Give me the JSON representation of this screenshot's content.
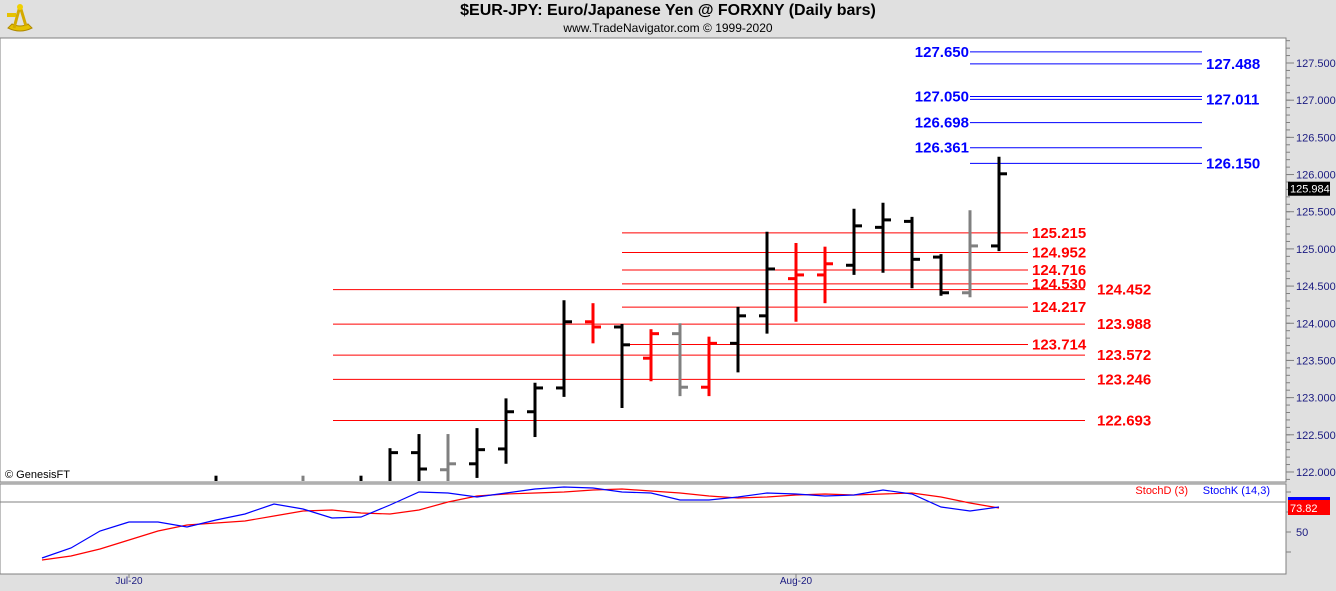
{
  "header": {
    "title": "$EUR-JPY:  Euro/Japanese Yen @ FORXNY  (Daily bars)",
    "subtitle": "www.TradeNavigator.com © 1999-2020",
    "logo_icon": "sextant-icon"
  },
  "copyright": "© GenesisFT",
  "colors": {
    "up": "#000000",
    "down": "#ff0000",
    "neutral": "#808080",
    "level_red": "#ff0000",
    "level_blue": "#0000ff",
    "stoch_k": "#0000ff",
    "stoch_d": "#ff0000"
  },
  "chart_data": [
    {
      "type": "ohlc",
      "title": "$EUR-JPY:  Euro/Japanese Yen @ FORXNY  (Daily bars)",
      "ylim": [
        121.7,
        127.85
      ],
      "yticks": [
        "127.500",
        "127.000",
        "126.500",
        "126.000",
        "125.500",
        "125.000",
        "124.500",
        "124.000",
        "123.500",
        "123.000",
        "122.500",
        "122.000"
      ],
      "last_price": "125.984",
      "x_labels": [
        {
          "index": 3,
          "label": "Jul-20"
        },
        {
          "index": 26,
          "label": "Aug-20"
        }
      ],
      "bars": [
        {
          "i": 6,
          "o": null,
          "h": 121.95,
          "l": 121.5,
          "c": null,
          "color": "up"
        },
        {
          "i": 9,
          "o": null,
          "h": 121.95,
          "l": 121.5,
          "c": null,
          "color": "neutral"
        },
        {
          "i": 11,
          "o": null,
          "h": 121.95,
          "l": 121.5,
          "c": null,
          "color": "up"
        },
        {
          "i": 12,
          "o": null,
          "h": 122.32,
          "l": 121.5,
          "c": 122.26,
          "color": "up"
        },
        {
          "i": 13,
          "o": 122.26,
          "h": 122.51,
          "l": 121.5,
          "c": 122.04,
          "color": "up"
        },
        {
          "i": 14,
          "o": 122.03,
          "h": 122.51,
          "l": 121.5,
          "c": 122.11,
          "color": "neutral"
        },
        {
          "i": 15,
          "o": 122.11,
          "h": 122.59,
          "l": 121.92,
          "c": 122.3,
          "color": "up"
        },
        {
          "i": 16,
          "o": 122.31,
          "h": 122.99,
          "l": 122.11,
          "c": 122.81,
          "color": "up"
        },
        {
          "i": 17,
          "o": 122.81,
          "h": 123.2,
          "l": 122.47,
          "c": 123.13,
          "color": "up"
        },
        {
          "i": 18,
          "o": 123.13,
          "h": 124.31,
          "l": 123.01,
          "c": 124.02,
          "color": "up"
        },
        {
          "i": 19,
          "o": 124.02,
          "h": 124.27,
          "l": 123.73,
          "c": 123.95,
          "color": "down"
        },
        {
          "i": 20,
          "o": 123.95,
          "h": 123.99,
          "l": 122.86,
          "c": 123.71,
          "color": "up"
        },
        {
          "i": 21,
          "o": 123.53,
          "h": 123.92,
          "l": 123.22,
          "c": 123.86,
          "color": "down"
        },
        {
          "i": 22,
          "o": 123.86,
          "h": 124.0,
          "l": 123.02,
          "c": 123.14,
          "color": "neutral"
        },
        {
          "i": 23,
          "o": 123.14,
          "h": 123.82,
          "l": 123.02,
          "c": 123.73,
          "color": "down"
        },
        {
          "i": 24,
          "o": 123.73,
          "h": 124.22,
          "l": 123.34,
          "c": 124.1,
          "color": "up"
        },
        {
          "i": 25,
          "o": 124.1,
          "h": 125.23,
          "l": 123.86,
          "c": 124.73,
          "color": "up"
        },
        {
          "i": 26,
          "o": 124.6,
          "h": 125.08,
          "l": 124.02,
          "c": 124.65,
          "color": "down"
        },
        {
          "i": 27,
          "o": 124.65,
          "h": 125.03,
          "l": 124.27,
          "c": 124.8,
          "color": "down"
        },
        {
          "i": 28,
          "o": 124.78,
          "h": 125.54,
          "l": 124.65,
          "c": 125.31,
          "color": "up"
        },
        {
          "i": 29,
          "o": 125.29,
          "h": 125.62,
          "l": 124.68,
          "c": 125.39,
          "color": "up"
        },
        {
          "i": 30,
          "o": 125.37,
          "h": 125.43,
          "l": 124.47,
          "c": 124.86,
          "color": "up"
        },
        {
          "i": 31,
          "o": 124.89,
          "h": 124.93,
          "l": 124.37,
          "c": 124.41,
          "color": "up"
        },
        {
          "i": 32,
          "o": 124.41,
          "h": 125.52,
          "l": 124.35,
          "c": 125.04,
          "color": "neutral"
        },
        {
          "i": 33,
          "o": 125.04,
          "h": 126.24,
          "l": 124.97,
          "c": 126.01,
          "color": "up"
        }
      ],
      "levels": [
        {
          "value": 127.65,
          "label": "127.650",
          "color": "level_blue",
          "group": "blue",
          "label_side": "left"
        },
        {
          "value": 127.488,
          "label": "127.488",
          "color": "level_blue",
          "group": "blue",
          "label_side": "right"
        },
        {
          "value": 127.05,
          "label": "127.050",
          "color": "level_blue",
          "group": "blue",
          "label_side": "left"
        },
        {
          "value": 127.011,
          "label": "127.011",
          "color": "level_blue",
          "group": "blue",
          "label_side": "right"
        },
        {
          "value": 126.698,
          "label": "126.698",
          "color": "level_blue",
          "group": "blue",
          "label_side": "left"
        },
        {
          "value": 126.361,
          "label": "126.361",
          "color": "level_blue",
          "group": "blue",
          "label_side": "left"
        },
        {
          "value": 126.15,
          "label": "126.150",
          "color": "level_blue",
          "group": "blue",
          "label_side": "right"
        },
        {
          "value": 125.215,
          "label": "125.215",
          "color": "level_red",
          "group": "short",
          "label_side": "right"
        },
        {
          "value": 124.952,
          "label": "124.952",
          "color": "level_red",
          "group": "short",
          "label_side": "right"
        },
        {
          "value": 124.716,
          "label": "124.716",
          "color": "level_red",
          "group": "short",
          "label_side": "right"
        },
        {
          "value": 124.53,
          "label": "124.530",
          "color": "level_red",
          "group": "short",
          "label_side": "right"
        },
        {
          "value": 124.452,
          "label": "124.452",
          "color": "level_red",
          "group": "long",
          "label_side": "right"
        },
        {
          "value": 124.217,
          "label": "124.217",
          "color": "level_red",
          "group": "short",
          "label_side": "right"
        },
        {
          "value": 123.988,
          "label": "123.988",
          "color": "level_red",
          "group": "long",
          "label_side": "right"
        },
        {
          "value": 123.714,
          "label": "123.714",
          "color": "level_red",
          "group": "short",
          "label_side": "right"
        },
        {
          "value": 123.572,
          "label": "123.572",
          "color": "level_red",
          "group": "long",
          "label_side": "right"
        },
        {
          "value": 123.246,
          "label": "123.246",
          "color": "level_red",
          "group": "long",
          "label_side": "right"
        },
        {
          "value": 122.693,
          "label": "122.693",
          "color": "level_red",
          "group": "long",
          "label_side": "right"
        }
      ]
    },
    {
      "type": "line",
      "ylim": [
        10,
        100
      ],
      "yticks": [
        "50"
      ],
      "reference_line": 80,
      "last_value": "73.82",
      "legend_placement": "top-right",
      "series": [
        {
          "name": "StochD (3)",
          "color": "stoch_d",
          "values": [
            22,
            26,
            33,
            42,
            51,
            57,
            59,
            61,
            66,
            71,
            72,
            69,
            68,
            72,
            80,
            86,
            88,
            89,
            90,
            92,
            93,
            91,
            89,
            86,
            84,
            85,
            87,
            88,
            87,
            88,
            89,
            85,
            79,
            74
          ]
        },
        {
          "name": "StochK (14,3)",
          "color": "stoch_k",
          "values": [
            24,
            34,
            51,
            60,
            60,
            55,
            62,
            68,
            78,
            73,
            64,
            65,
            77,
            90,
            89,
            85,
            89,
            93,
            95,
            94,
            90,
            89,
            82,
            82,
            85,
            89,
            88,
            86,
            87,
            92,
            88,
            75,
            71,
            75
          ]
        }
      ]
    }
  ]
}
